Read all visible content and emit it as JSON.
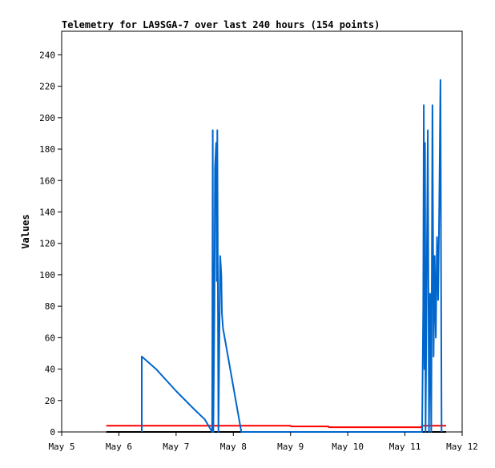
{
  "chart_data": {
    "type": "line",
    "title": "Telemetry for LA9SGA-7 over last 240 hours (154 points)",
    "xlabel": "",
    "ylabel": "Values",
    "xlim": [
      5.0,
      12.0
    ],
    "ylim": [
      0,
      255
    ],
    "x_tick_labels": [
      "May 5",
      "May 6",
      "May 7",
      "May 8",
      "May 9",
      "May 10",
      "May 11",
      "May 12"
    ],
    "x_tick_values": [
      5,
      6,
      7,
      8,
      9,
      10,
      11,
      12
    ],
    "y_ticks": [
      0,
      20,
      40,
      60,
      80,
      100,
      120,
      140,
      160,
      180,
      200,
      220,
      240
    ],
    "grid": false,
    "legend": "none",
    "series": [
      {
        "color": "#000000",
        "points": [
          [
            5.78,
            0
          ],
          [
            11.72,
            0
          ]
        ]
      },
      {
        "color": "#ff0000",
        "points": [
          [
            5.78,
            4
          ],
          [
            9.0,
            4
          ],
          [
            9.01,
            3.5
          ],
          [
            9.66,
            3.5
          ],
          [
            9.67,
            3
          ],
          [
            11.28,
            3
          ],
          [
            11.3,
            4
          ],
          [
            11.72,
            4
          ]
        ]
      },
      {
        "color": "#0066cc",
        "points": [
          [
            6.4,
            0
          ],
          [
            6.4,
            48
          ],
          [
            6.65,
            40
          ],
          [
            7.0,
            26
          ],
          [
            7.3,
            15
          ],
          [
            7.5,
            8
          ],
          [
            7.63,
            0
          ],
          [
            7.64,
            192
          ],
          [
            7.65,
            0
          ],
          [
            7.67,
            80
          ],
          [
            7.68,
            168
          ],
          [
            7.7,
            184
          ],
          [
            7.71,
            96
          ],
          [
            7.72,
            192
          ],
          [
            7.74,
            0
          ],
          [
            7.77,
            112
          ],
          [
            7.79,
            100
          ],
          [
            7.8,
            76
          ],
          [
            7.82,
            66
          ],
          [
            8.14,
            0
          ],
          [
            11.3,
            0
          ],
          [
            11.32,
            80
          ],
          [
            11.33,
            208
          ],
          [
            11.34,
            40
          ],
          [
            11.35,
            184
          ],
          [
            11.36,
            0
          ],
          [
            11.38,
            96
          ],
          [
            11.4,
            192
          ],
          [
            11.42,
            0
          ],
          [
            11.44,
            88
          ],
          [
            11.46,
            0
          ],
          [
            11.48,
            208
          ],
          [
            11.5,
            48
          ],
          [
            11.52,
            112
          ],
          [
            11.54,
            60
          ],
          [
            11.56,
            124
          ],
          [
            11.58,
            84
          ],
          [
            11.6,
            144
          ],
          [
            11.62,
            224
          ],
          [
            11.64,
            0
          ]
        ]
      }
    ]
  }
}
